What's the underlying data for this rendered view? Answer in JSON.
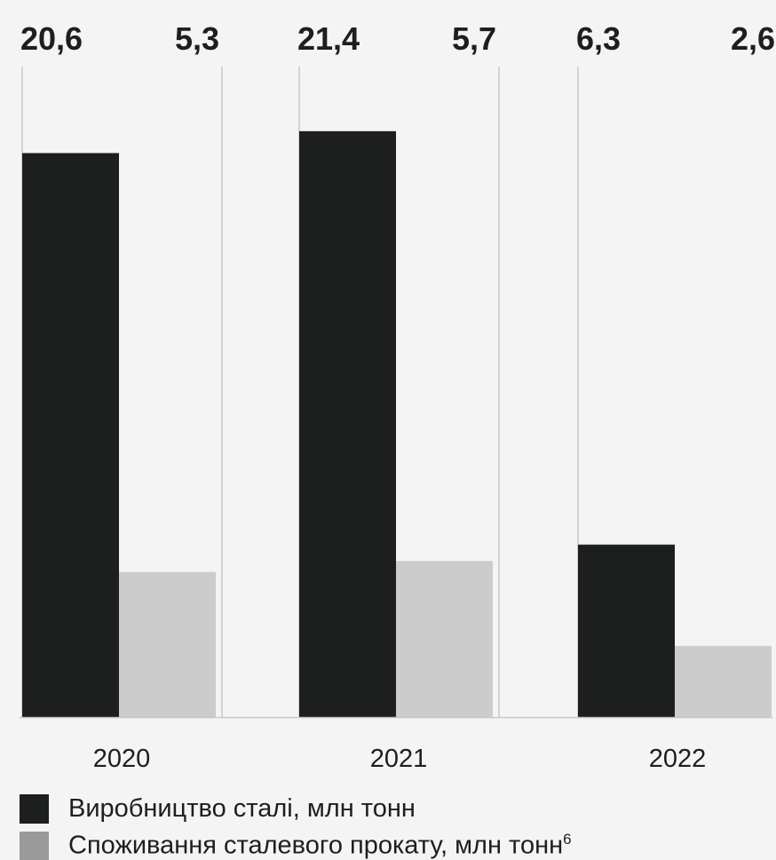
{
  "chart_data": {
    "type": "bar",
    "categories": [
      "2020",
      "2021",
      "2022"
    ],
    "series": [
      {
        "name": "Виробництво сталі, млн тонн",
        "values": [
          20.6,
          21.4,
          6.3
        ],
        "labels": [
          "20,6",
          "21,4",
          "6,3"
        ],
        "color": "#1d1e1e"
      },
      {
        "name": "Споживання сталевого прокату, млн тонн",
        "name_sup": "6",
        "values": [
          5.3,
          5.7,
          2.6
        ],
        "labels": [
          "5,3",
          "5,7",
          "2,6"
        ],
        "color": "#cccccc"
      }
    ],
    "ylim": [
      0,
      25
    ],
    "grid": false,
    "legend_position": "bottom-left"
  },
  "colors": {
    "background": "#f4f4f4",
    "text": "#1d1e1e",
    "guide_lines": "#c8c8c8",
    "legend_swatch_2": "#9a9a9a"
  }
}
